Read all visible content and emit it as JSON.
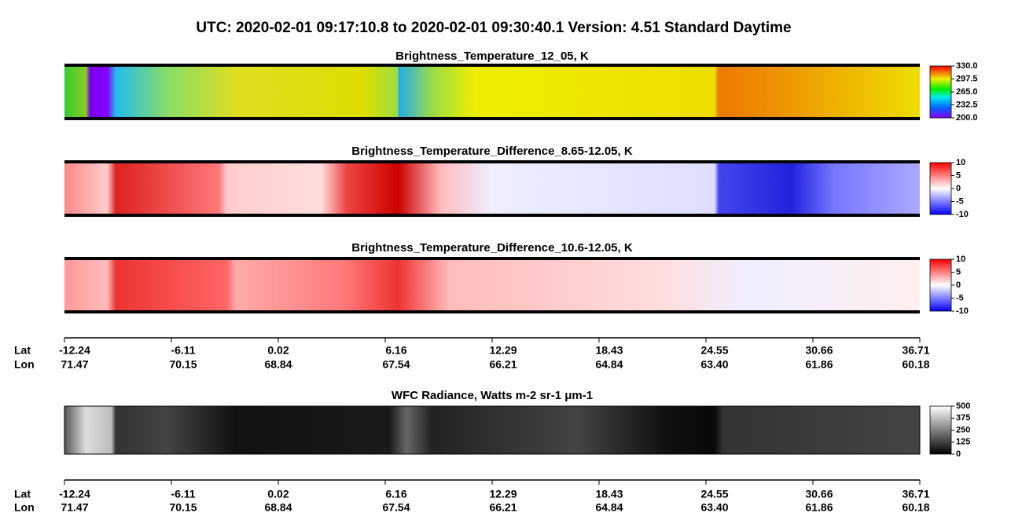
{
  "title": "UTC:  2020-02-01   09:17:10.8  to  2020-02-01   09:30:40.1    Version: 4.51  Standard Daytime",
  "panels": [
    {
      "title": "Brightness_Temperature_12_05, K",
      "colorbar": [
        "330.0",
        "297.5",
        "265.0",
        "232.5",
        "200.0"
      ]
    },
    {
      "title": "Brightness_Temperature_Difference_8.65-12.05, K",
      "colorbar": [
        "10",
        "5",
        "0",
        "-5",
        "-10"
      ]
    },
    {
      "title": "Brightness_Temperature_Difference_10.6-12.05, K",
      "colorbar": [
        "10",
        "5",
        "0",
        "-5",
        "-10"
      ]
    },
    {
      "title": "WFC Radiance, Watts m-2 sr-1 μm-1",
      "colorbar": [
        "500",
        "375",
        "250",
        "125",
        "0"
      ]
    }
  ],
  "axes": [
    {
      "lat_name": "Lat",
      "lon_name": "Lon",
      "lat": [
        "-12.24",
        "-6.11",
        "0.02",
        "6.16",
        "12.29",
        "18.43",
        "24.55",
        "30.66",
        "36.71"
      ],
      "lon": [
        "71.47",
        "70.15",
        "68.84",
        "67.54",
        "66.21",
        "64.84",
        "63.40",
        "61.86",
        "60.18"
      ]
    },
    {
      "lat_name": "Lat",
      "lon_name": "Lon",
      "lat": [
        "-12.24",
        "-6.11",
        "0.02",
        "6.16",
        "12.29",
        "18.43",
        "24.55",
        "30.66",
        "36.71"
      ],
      "lon": [
        "71.47",
        "70.15",
        "68.84",
        "67.54",
        "66.21",
        "64.84",
        "63.40",
        "61.86",
        "60.18"
      ]
    }
  ]
}
